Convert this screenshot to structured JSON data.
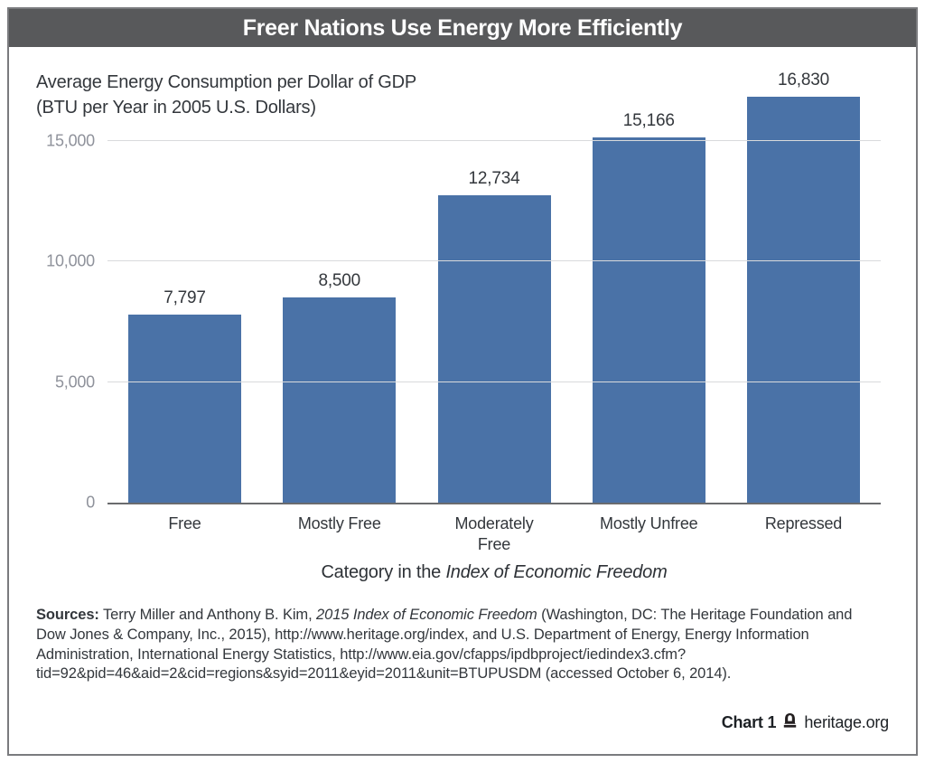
{
  "header": {
    "title": "Freer Nations Use Energy More Efficiently",
    "bg_color": "#58595b"
  },
  "chart_data": {
    "type": "bar",
    "title": "Freer Nations Use Energy More Efficiently",
    "subtitle": [
      "Average Energy Consumption per Dollar of GDP",
      "(BTU per Year in 2005 U.S. Dollars)"
    ],
    "categories": [
      "Free",
      "Mostly Free",
      "Moderately Free",
      "Mostly Unfree",
      "Repressed"
    ],
    "category_display": [
      "Free",
      "Mostly Free",
      "Moderately\nFree",
      "Mostly Unfree",
      "Repressed"
    ],
    "values": [
      7797,
      8500,
      12734,
      15166,
      16830
    ],
    "value_labels": [
      "7,797",
      "8,500",
      "12,734",
      "15,166",
      "16,830"
    ],
    "yticks": [
      {
        "value": 0,
        "label": "0"
      },
      {
        "value": 5000,
        "label": "5,000"
      },
      {
        "value": 10000,
        "label": "10,000"
      },
      {
        "value": 15000,
        "label": "15,000"
      }
    ],
    "ylim": [
      0,
      16950
    ],
    "xlabel": {
      "prefix": "Category in the ",
      "italic": "Index of Economic Freedom"
    },
    "bar_color": "#4a72a7",
    "grid": true,
    "legend_position": "none"
  },
  "sources": {
    "label": "Sources:",
    "lines": [
      [
        {
          "t": " Terry Miller and Anthony B. Kim, "
        },
        {
          "t": "2015 Index of Economic Freedom",
          "i": true
        },
        {
          "t": " (Washington, DC: The Heritage Foundation and"
        }
      ],
      [
        {
          "t": "Dow Jones & Company, Inc., 2015), http://www.heritage.org/index, and U.S. Department of Energy, Energy Information"
        }
      ],
      [
        {
          "t": "Administration, International Energy Statistics, http://www.eia.gov/cfapps/ipdbproject/iedindex3.cfm?"
        }
      ],
      [
        {
          "t": "tid=92&pid=46&aid=2&cid=regions&syid=2011&eyid=2011&unit=BTUPUSDM (accessed October 6, 2014)."
        }
      ]
    ]
  },
  "footer": {
    "chart_label": "Chart 1",
    "site": "heritage.org",
    "bell_icon": "liberty-bell",
    "icon_color": "#231f20"
  }
}
